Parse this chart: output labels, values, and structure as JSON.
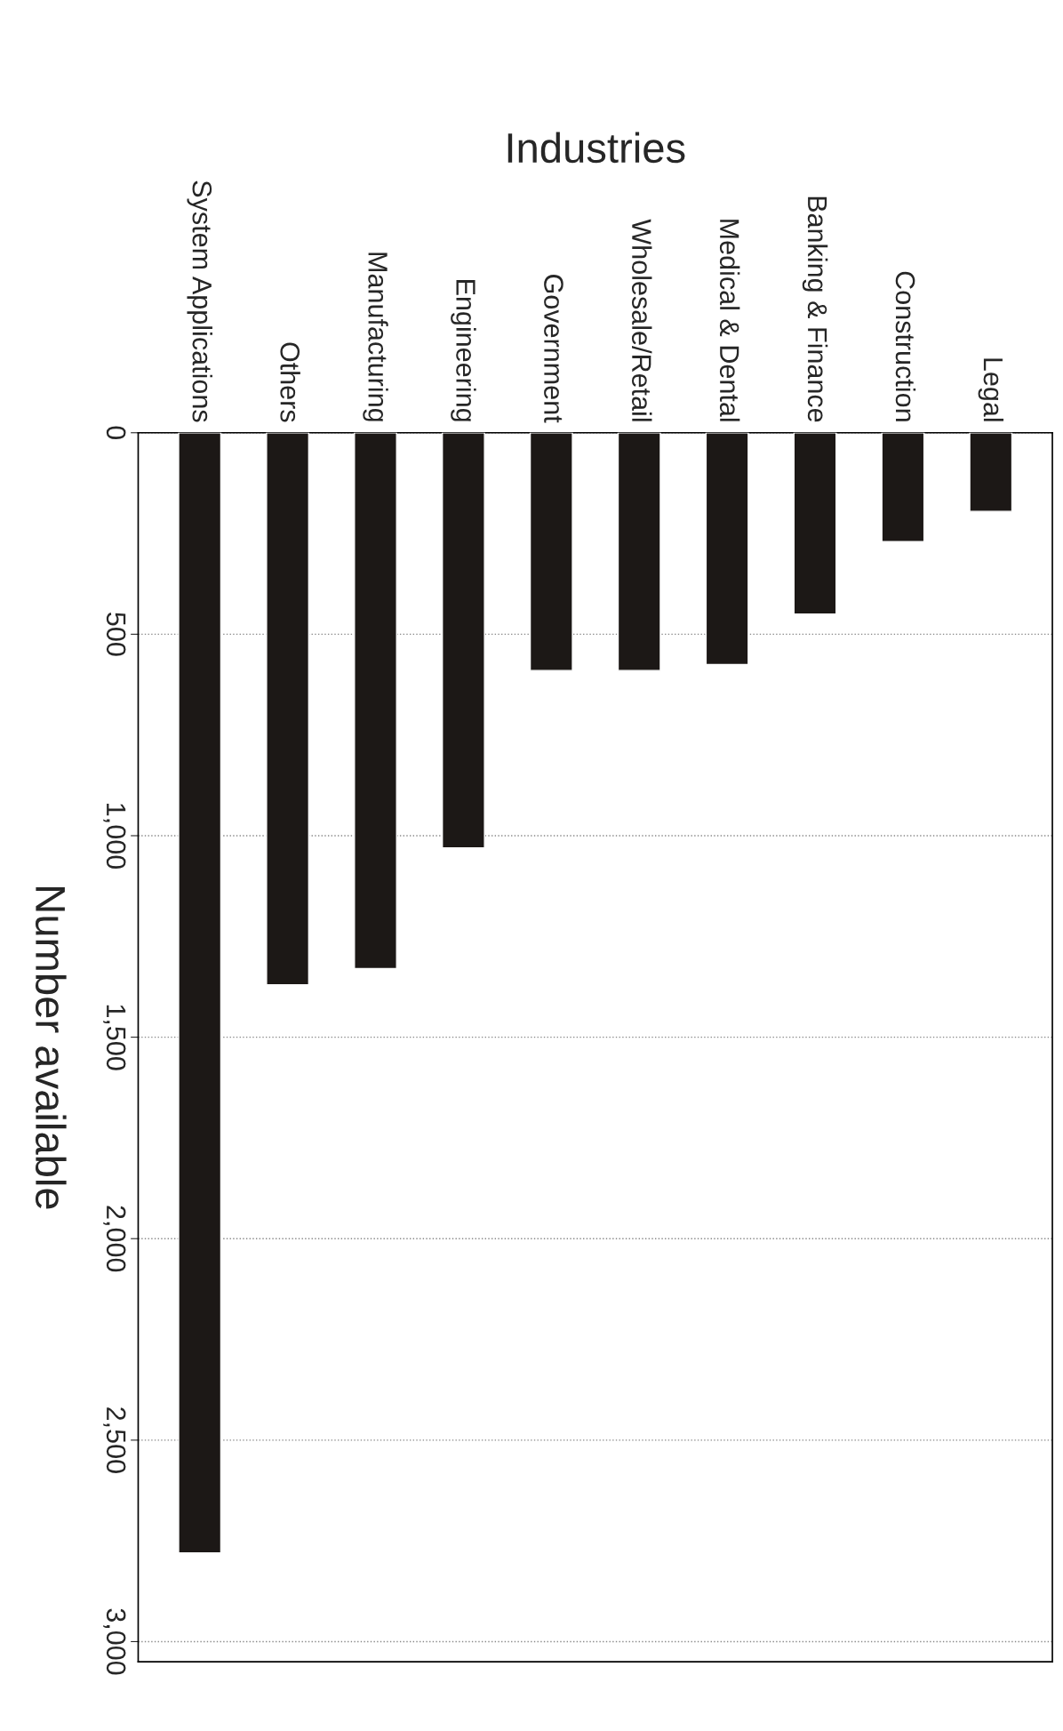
{
  "chart_data": {
    "type": "bar",
    "xlabel": "Industries",
    "ylabel": "Number available",
    "categories": [
      "System Applications",
      "Others",
      "Manufacturing",
      "Engineering",
      "Government",
      "Wholesale/Retail",
      "Medical & Dental",
      "Banking & Finance",
      "Construction",
      "Legal"
    ],
    "values": [
      2780,
      1370,
      1330,
      1030,
      590,
      590,
      575,
      450,
      270,
      195
    ],
    "color": "#1c1816",
    "ylim": [
      3050,
      0
    ],
    "yticks": [
      0,
      500,
      {
        "value": 1000,
        "label": "1,000"
      },
      {
        "value": 1500,
        "label": "1,500"
      },
      {
        "value": 2000,
        "label": "2,000"
      },
      {
        "value": 2500,
        "label": "2,500"
      },
      {
        "value": 3000,
        "label": "3,000"
      }
    ],
    "grid": "y",
    "line_style": "dotted"
  }
}
